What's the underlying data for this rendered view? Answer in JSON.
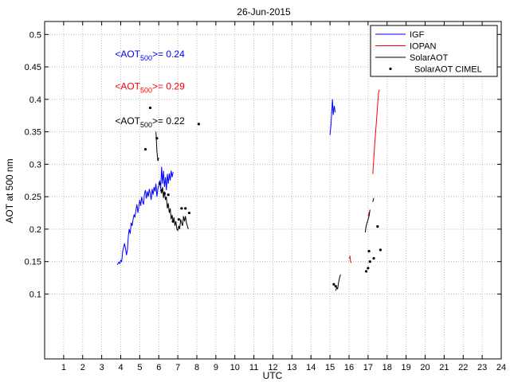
{
  "chart_data": {
    "type": "line",
    "title": "26-Jun-2015",
    "xlabel": "UTC",
    "ylabel": "AOT at 500 nm",
    "xlim": [
      0,
      24
    ],
    "ylim": [
      0,
      0.52
    ],
    "xticks": [
      1,
      2,
      3,
      4,
      5,
      6,
      7,
      8,
      9,
      10,
      11,
      12,
      13,
      14,
      15,
      16,
      17,
      18,
      19,
      20,
      21,
      22,
      23,
      24
    ],
    "yticks": [
      0.1,
      0.15,
      0.2,
      0.25,
      0.3,
      0.35,
      0.4,
      0.45,
      0.5
    ],
    "grid": true,
    "legend_placement": "top-right",
    "legend": [
      {
        "label": "IGF",
        "color": "#0000ff",
        "kind": "line"
      },
      {
        "label": "IOPAN",
        "color": "#ff0000",
        "kind": "line"
      },
      {
        "label": "SolarAOT",
        "color": "#000000",
        "kind": "line"
      },
      {
        "label": "SolarAOT CIMEL",
        "color": "#000000",
        "kind": "marker"
      }
    ],
    "annotations": [
      {
        "prefix": "<AOT",
        "sub": "500",
        "suffix": ">= 0.24",
        "color": "#0000ff",
        "x": 3.7,
        "y": 0.465
      },
      {
        "prefix": "<AOT",
        "sub": "500",
        "suffix": ">= 0.29",
        "color": "#ff0000",
        "x": 3.7,
        "y": 0.415
      },
      {
        "prefix": "<AOT",
        "sub": "500",
        "suffix": ">= 0.22",
        "color": "#000000",
        "x": 3.7,
        "y": 0.362
      }
    ],
    "series": [
      {
        "name": "IGF",
        "color": "#0000ff",
        "segments": [
          [
            [
              3.82,
              0.145
            ],
            [
              3.9,
              0.149
            ],
            [
              3.95,
              0.147
            ],
            [
              4.0,
              0.152
            ],
            [
              4.05,
              0.15
            ],
            [
              4.1,
              0.165
            ],
            [
              4.15,
              0.172
            ],
            [
              4.2,
              0.178
            ],
            [
              4.25,
              0.17
            ],
            [
              4.3,
              0.16
            ],
            [
              4.35,
              0.168
            ],
            [
              4.4,
              0.19
            ],
            [
              4.45,
              0.2
            ],
            [
              4.5,
              0.193
            ],
            [
              4.55,
              0.21
            ],
            [
              4.6,
              0.205
            ],
            [
              4.65,
              0.215
            ],
            [
              4.7,
              0.222
            ],
            [
              4.75,
              0.218
            ],
            [
              4.8,
              0.23
            ],
            [
              4.85,
              0.238
            ],
            [
              4.9,
              0.225
            ],
            [
              4.95,
              0.235
            ],
            [
              5.0,
              0.245
            ],
            [
              5.05,
              0.236
            ],
            [
              5.1,
              0.25
            ],
            [
              5.15,
              0.242
            ],
            [
              5.2,
              0.238
            ],
            [
              5.25,
              0.255
            ],
            [
              5.3,
              0.26
            ],
            [
              5.35,
              0.247
            ],
            [
              5.4,
              0.258
            ],
            [
              5.45,
              0.25
            ],
            [
              5.5,
              0.262
            ],
            [
              5.55,
              0.255
            ],
            [
              5.6,
              0.245
            ],
            [
              5.65,
              0.262
            ],
            [
              5.7,
              0.253
            ],
            [
              5.75,
              0.265
            ],
            [
              5.8,
              0.258
            ],
            [
              5.85,
              0.27
            ],
            [
              5.9,
              0.25
            ],
            [
              5.95,
              0.262
            ],
            [
              6.0,
              0.268
            ],
            [
              6.05,
              0.275
            ],
            [
              6.1,
              0.262
            ],
            [
              6.15,
              0.296
            ],
            [
              6.2,
              0.27
            ],
            [
              6.25,
              0.29
            ],
            [
              6.3,
              0.265
            ],
            [
              6.35,
              0.28
            ],
            [
              6.4,
              0.26
            ],
            [
              6.45,
              0.285
            ],
            [
              6.5,
              0.27
            ],
            [
              6.55,
              0.286
            ],
            [
              6.6,
              0.275
            ],
            [
              6.65,
              0.29
            ],
            [
              6.7,
              0.28
            ],
            [
              6.75,
              0.288
            ]
          ],
          [
            [
              15.0,
              0.345
            ],
            [
              15.05,
              0.36
            ],
            [
              15.1,
              0.385
            ],
            [
              15.13,
              0.4
            ],
            [
              15.17,
              0.376
            ],
            [
              15.22,
              0.39
            ],
            [
              15.27,
              0.38
            ]
          ]
        ]
      },
      {
        "name": "IOPAN",
        "color": "#ff0000",
        "segments": [
          [
            [
              16.0,
              0.155
            ],
            [
              16.05,
              0.158
            ],
            [
              16.08,
              0.15
            ],
            [
              16.12,
              0.148
            ]
          ],
          [
            [
              17.0,
              0.22
            ],
            [
              17.05,
              0.225
            ],
            [
              17.1,
              0.228
            ]
          ],
          [
            [
              17.25,
              0.285
            ],
            [
              17.35,
              0.33
            ],
            [
              17.45,
              0.37
            ],
            [
              17.55,
              0.41
            ],
            [
              17.6,
              0.415
            ]
          ]
        ]
      },
      {
        "name": "SolarAOT",
        "color": "#000000",
        "segments": [
          [
            [
              5.85,
              0.35
            ],
            [
              5.9,
              0.32
            ],
            [
              5.95,
              0.305
            ],
            [
              6.0,
              0.31
            ]
          ],
          [
            [
              6.1,
              0.26
            ],
            [
              6.15,
              0.255
            ],
            [
              6.2,
              0.265
            ],
            [
              6.25,
              0.248
            ],
            [
              6.3,
              0.258
            ],
            [
              6.35,
              0.245
            ],
            [
              6.4,
              0.25
            ],
            [
              6.45,
              0.232
            ],
            [
              6.5,
              0.24
            ],
            [
              6.55,
              0.225
            ],
            [
              6.6,
              0.232
            ],
            [
              6.65,
              0.215
            ],
            [
              6.7,
              0.222
            ],
            [
              6.75,
              0.21
            ],
            [
              6.8,
              0.218
            ],
            [
              6.85,
              0.205
            ],
            [
              6.9,
              0.212
            ],
            [
              6.95,
              0.2
            ],
            [
              7.0,
              0.198
            ],
            [
              7.05,
              0.205
            ],
            [
              7.1,
              0.2
            ],
            [
              7.15,
              0.215
            ],
            [
              7.2,
              0.21
            ],
            [
              7.25,
              0.205
            ],
            [
              7.3,
              0.22
            ],
            [
              7.35,
              0.212
            ],
            [
              7.4,
              0.22
            ],
            [
              7.45,
              0.21
            ],
            [
              7.5,
              0.205
            ],
            [
              7.55,
              0.2
            ]
          ],
          [
            [
              15.3,
              0.105
            ],
            [
              15.35,
              0.11
            ],
            [
              15.4,
              0.108
            ],
            [
              15.45,
              0.118
            ],
            [
              15.5,
              0.125
            ],
            [
              15.55,
              0.13
            ]
          ],
          [
            [
              16.85,
              0.195
            ],
            [
              16.9,
              0.205
            ],
            [
              16.95,
              0.21
            ],
            [
              17.0,
              0.215
            ],
            [
              17.05,
              0.22
            ],
            [
              17.1,
              0.23
            ]
          ],
          [
            [
              17.25,
              0.242
            ],
            [
              17.3,
              0.248
            ]
          ]
        ]
      }
    ],
    "markers": {
      "name": "SolarAOT CIMEL",
      "color": "#000000",
      "points": [
        [
          5.3,
          0.323
        ],
        [
          5.55,
          0.387
        ],
        [
          5.9,
          0.34
        ],
        [
          6.05,
          0.27
        ],
        [
          6.15,
          0.26
        ],
        [
          6.3,
          0.255
        ],
        [
          6.5,
          0.253
        ],
        [
          6.75,
          0.212
        ],
        [
          7.05,
          0.215
        ],
        [
          7.2,
          0.232
        ],
        [
          7.4,
          0.232
        ],
        [
          7.6,
          0.225
        ],
        [
          8.1,
          0.362
        ],
        [
          15.2,
          0.115
        ],
        [
          15.3,
          0.112
        ],
        [
          16.9,
          0.135
        ],
        [
          17.0,
          0.14
        ],
        [
          17.1,
          0.15
        ],
        [
          17.05,
          0.166
        ],
        [
          17.3,
          0.155
        ],
        [
          17.5,
          0.204
        ],
        [
          17.65,
          0.168
        ]
      ]
    }
  }
}
